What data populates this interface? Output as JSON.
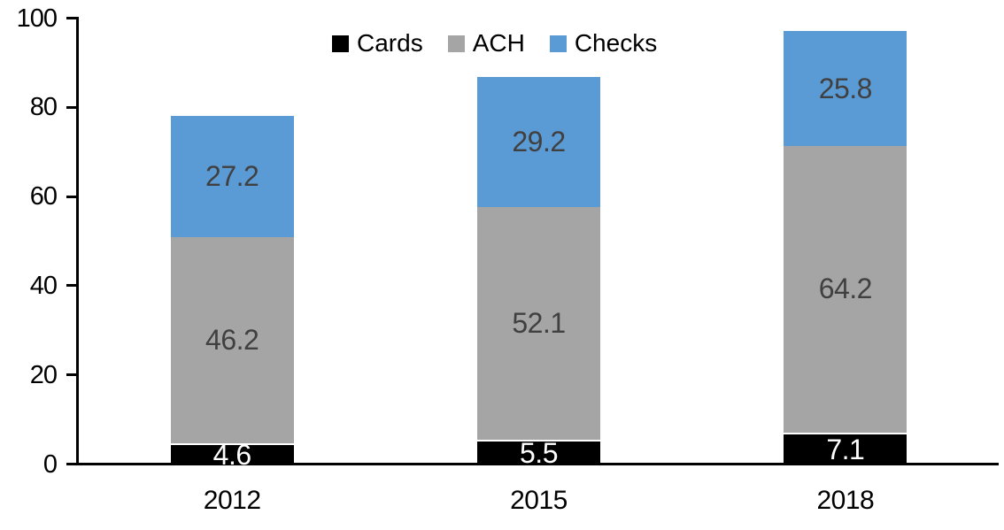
{
  "chart_data": {
    "type": "bar",
    "stacked": true,
    "title": "",
    "xlabel": "",
    "ylabel": "",
    "categories": [
      "2012",
      "2015",
      "2018"
    ],
    "series": [
      {
        "name": "Cards",
        "color": "#000000",
        "label_color": "#ffffff",
        "values": [
          4.6,
          5.5,
          7.1
        ]
      },
      {
        "name": "ACH",
        "color": "#A5A5A5",
        "label_color": "#404040",
        "values": [
          46.2,
          52.1,
          64.2
        ]
      },
      {
        "name": "Checks",
        "color": "#5B9BD5",
        "label_color": "#404040",
        "values": [
          27.2,
          29.2,
          25.8
        ]
      }
    ],
    "ylim": [
      0,
      100
    ],
    "yticks": [
      0,
      20,
      40,
      60,
      80,
      100
    ],
    "grid": false,
    "legend_position": "top-center",
    "bar_totals": [
      78.0,
      86.8,
      97.1
    ],
    "axis_color": "#000000",
    "background_color": "#ffffff"
  }
}
